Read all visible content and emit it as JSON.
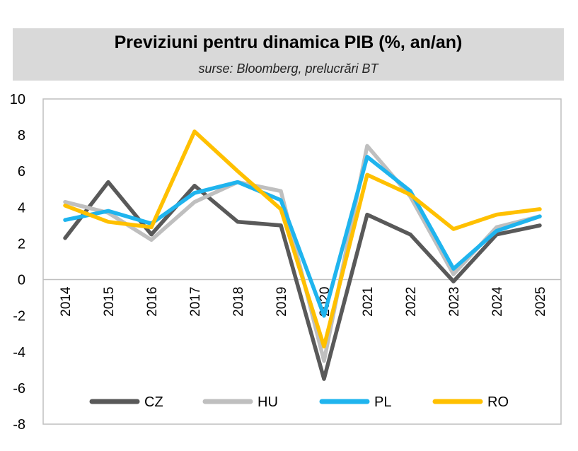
{
  "header": {
    "title": "Previziuni pentru dinamica PIB (%, an/an)",
    "subtitle": "surse: Bloomberg, prelucrări BT"
  },
  "colors": {
    "CZ": "#595959",
    "HU": "#bfbfbf",
    "PL": "#1fb4ee",
    "RO": "#ffc000",
    "header_bg": "#d9d9d9"
  },
  "chart_data": {
    "type": "line",
    "title": "Previziuni pentru dinamica PIB (%, an/an)",
    "subtitle": "surse: Bloomberg, prelucrări BT",
    "xlabel": "",
    "ylabel": "",
    "ylim": [
      -8,
      10
    ],
    "yticks": [
      "10",
      "8",
      "6",
      "4",
      "2",
      "0",
      "-2",
      "-4",
      "-6",
      "-8"
    ],
    "grid": false,
    "legend_position": "bottom",
    "x": [
      "2014",
      "2015",
      "2016",
      "2017",
      "2018",
      "2019",
      "2020",
      "2021",
      "2022",
      "2023",
      "2024",
      "2025"
    ],
    "series": [
      {
        "name": "CZ",
        "values": [
          2.3,
          5.4,
          2.5,
          5.2,
          3.2,
          3.0,
          -5.5,
          3.6,
          2.5,
          -0.1,
          2.5,
          3.0
        ]
      },
      {
        "name": "HU",
        "values": [
          4.3,
          3.7,
          2.2,
          4.3,
          5.4,
          4.9,
          -4.5,
          7.4,
          4.6,
          0.3,
          2.9,
          3.5
        ]
      },
      {
        "name": "PL",
        "values": [
          3.3,
          3.8,
          3.1,
          4.8,
          5.4,
          4.4,
          -2.0,
          6.8,
          4.9,
          0.6,
          2.7,
          3.5
        ]
      },
      {
        "name": "RO",
        "values": [
          4.1,
          3.2,
          2.9,
          8.2,
          6.0,
          3.9,
          -3.7,
          5.8,
          4.7,
          2.8,
          3.6,
          3.9
        ]
      }
    ]
  }
}
